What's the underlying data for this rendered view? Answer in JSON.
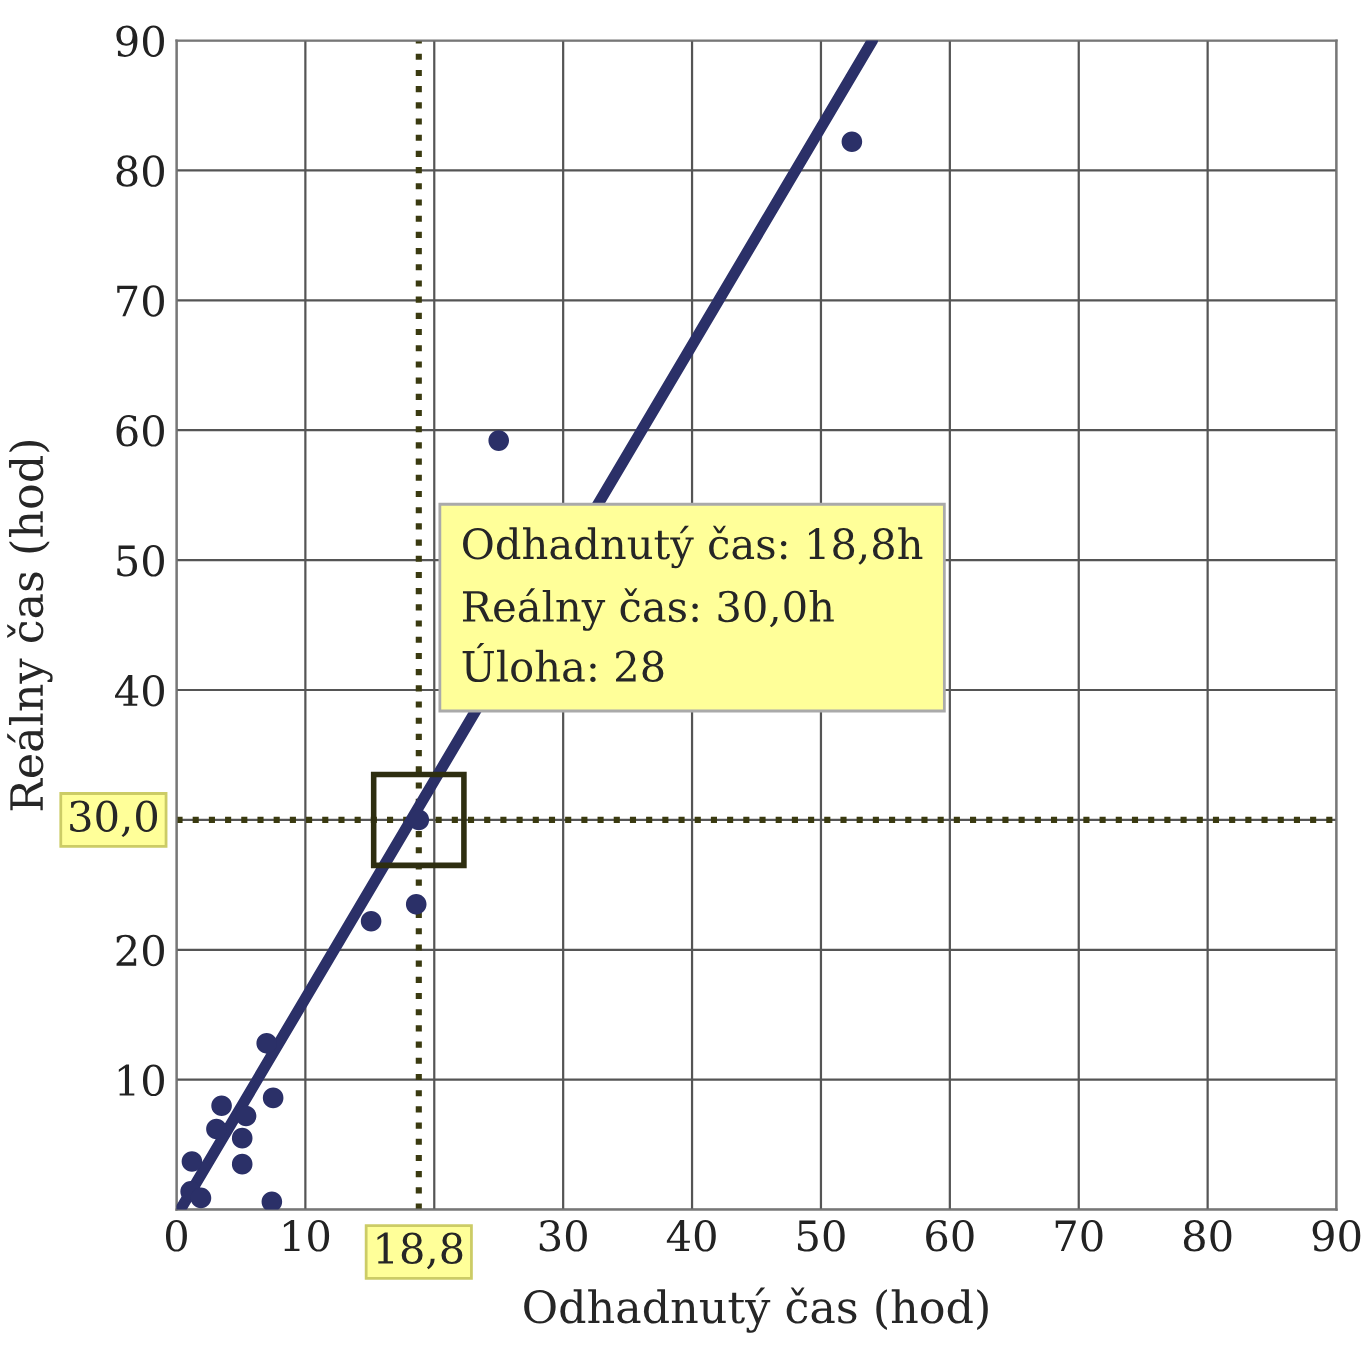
{
  "chart_data": {
    "type": "scatter",
    "xlabel": "Odhadnutý čas (hod)",
    "ylabel": "Reálny čas (hod)",
    "x": [
      1.1,
      1.9,
      1.2,
      5.1,
      3.1,
      5.1,
      3.5,
      5.4,
      7.5,
      7.0,
      7.4,
      15.1,
      18.6,
      18.8,
      25.0,
      52.4
    ],
    "series": [
      {
        "color": "#2b3068",
        "marker": "circle",
        "values": [
          1.4,
          0.9,
          3.7,
          3.5,
          6.2,
          5.5,
          8.0,
          7.2,
          8.6,
          12.8,
          0.6,
          22.2,
          23.5,
          30.0,
          59.2,
          82.2
        ]
      },
      {
        "type": "line",
        "color": "#2b3068",
        "x": [
          0.3,
          54
        ],
        "values": [
          0,
          90
        ]
      }
    ],
    "xlim": [
      0,
      90
    ],
    "ylim": [
      0,
      90
    ],
    "xticks": [
      0,
      10,
      {
        "value": 20,
        "label": null
      },
      30,
      40,
      50,
      60,
      70,
      80,
      90
    ],
    "yticks": [
      {
        "value": 0,
        "label": null
      },
      10,
      20,
      {
        "value": 30,
        "label": null
      },
      40,
      50,
      60,
      70,
      80,
      90
    ],
    "grid": true,
    "ref_lines": [
      {
        "axis": "x",
        "value": 18.8,
        "label": "18,8",
        "color": "#3a3a10",
        "line_style": "dotted"
      },
      {
        "axis": "y",
        "value": 30.0,
        "label": "30,0",
        "color": "#3a3a10",
        "line_style": "dotted"
      }
    ],
    "annotations": [
      "Odhadnutý čas: 18,8h\nReálny čas: 30,0h\nÚloha: 28"
    ]
  }
}
